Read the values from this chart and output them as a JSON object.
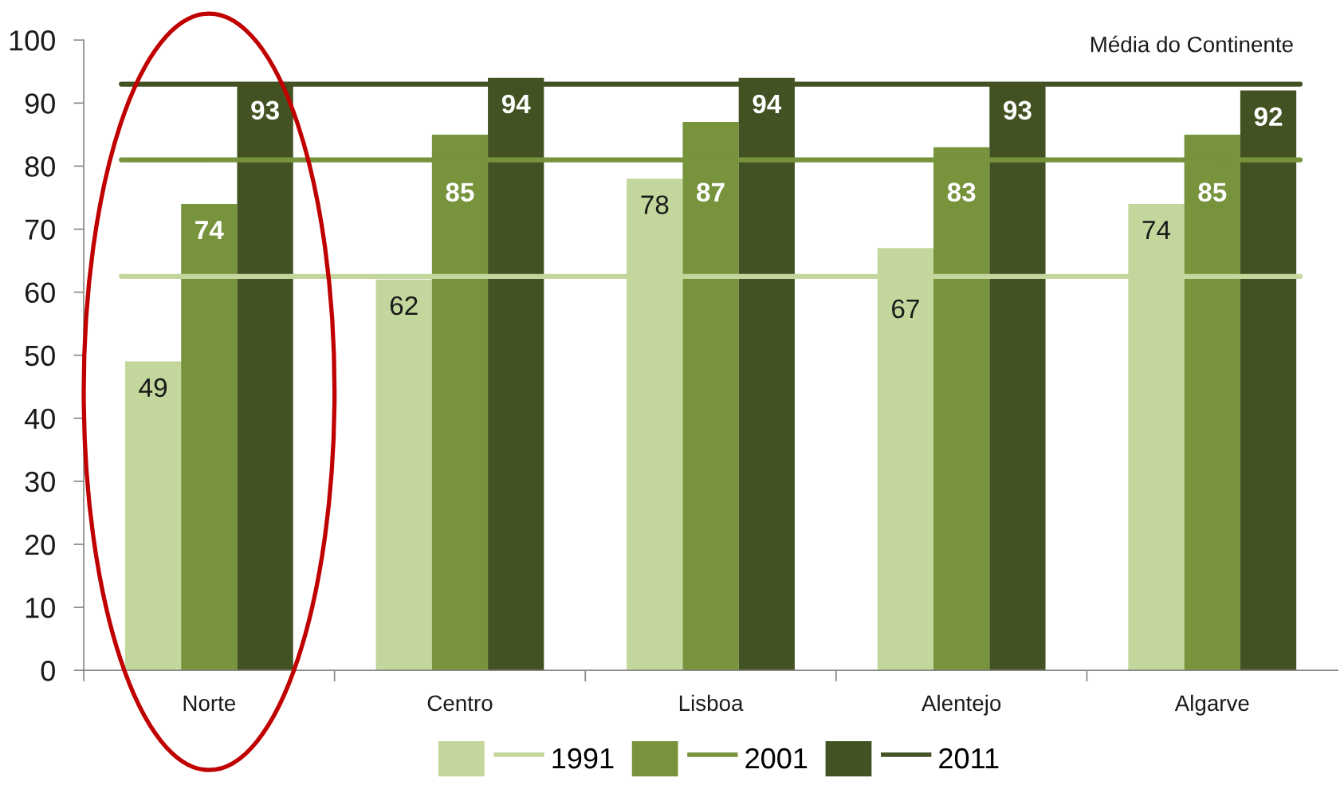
{
  "chart_data": {
    "type": "bar",
    "categories": [
      "Norte",
      "Centro",
      "Lisboa",
      "Alentejo",
      "Algarve"
    ],
    "series": [
      {
        "name": "1991",
        "color": "#c3d69b",
        "values": [
          49,
          62,
          78,
          67,
          74
        ]
      },
      {
        "name": "2001",
        "color": "#77933c",
        "values": [
          74,
          85,
          87,
          83,
          85
        ]
      },
      {
        "name": "2011",
        "color": "#435222",
        "values": [
          93,
          94,
          94,
          93,
          92
        ]
      }
    ],
    "ylim": [
      0,
      100
    ],
    "yticks": [
      0,
      10,
      20,
      30,
      40,
      50,
      60,
      70,
      80,
      90,
      100
    ],
    "data_labels": true,
    "legend": "bottom",
    "ref_lines": [
      {
        "axis": "y",
        "value": 62.5,
        "color": "#c3d69b",
        "line_style": "solid"
      },
      {
        "axis": "y",
        "value": 81,
        "color": "#77933c",
        "line_style": "solid"
      },
      {
        "axis": "y",
        "value": 93,
        "color": "#435222",
        "line_style": "solid"
      }
    ],
    "annotations": [
      "Média do Continente"
    ]
  }
}
